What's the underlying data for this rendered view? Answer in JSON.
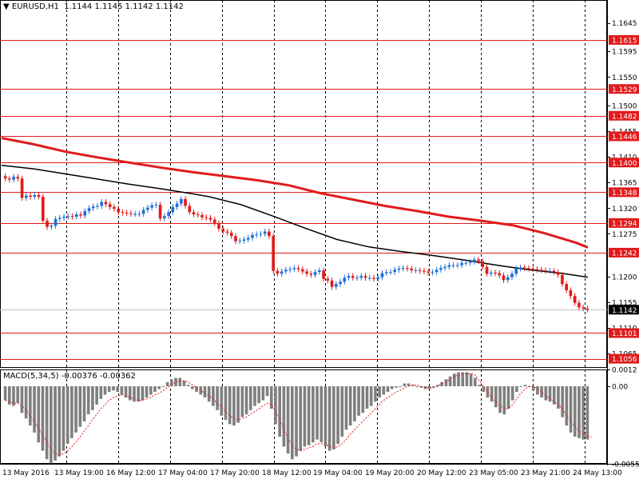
{
  "chart_data": {
    "type": "candlestick",
    "title": "EURUSD,H1",
    "ohlc_header": [
      "1.1144",
      "1.1145",
      "1.1142",
      "1.1142"
    ],
    "x_tick_labels": [
      "13 May 2016",
      "13 May 19:00",
      "16 May 12:00",
      "17 May 04:00",
      "17 May 20:00",
      "18 May 12:00",
      "19 May 04:00",
      "19 May 20:00",
      "20 May 12:00",
      "23 May 05:00",
      "23 May 21:00",
      "24 May 13:00"
    ],
    "y_tick_labels": [
      "1.1645",
      "1.1595",
      "1.1550",
      "1.1500",
      "1.1455",
      "1.1410",
      "1.1365",
      "1.1320",
      "1.1275",
      "1.1200",
      "1.1155",
      "1.1110",
      "1.1065"
    ],
    "ylim": [
      1.104,
      1.1685
    ],
    "horizontal_levels": [
      "1.1615",
      "1.1529",
      "1.1482",
      "1.1446",
      "1.1400",
      "1.1348",
      "1.1294",
      "1.1242",
      "1.1101",
      "1.1056"
    ],
    "current_price": "1.1142",
    "close_series": [
      1.1372,
      1.137,
      1.1375,
      1.1372,
      1.1338,
      1.1342,
      1.134,
      1.1343,
      1.134,
      1.1298,
      1.1287,
      1.1289,
      1.1301,
      1.1303,
      1.1305,
      1.1306,
      1.1305,
      1.1309,
      1.1307,
      1.1315,
      1.132,
      1.1323,
      1.1324,
      1.1331,
      1.1327,
      1.1322,
      1.1319,
      1.1313,
      1.1312,
      1.1311,
      1.131,
      1.131,
      1.131,
      1.1317,
      1.1321,
      1.1325,
      1.1326,
      1.1302,
      1.1306,
      1.1313,
      1.1322,
      1.1328,
      1.1336,
      1.1324,
      1.1313,
      1.1309,
      1.1308,
      1.1304,
      1.1303,
      1.13,
      1.1294,
      1.1284,
      1.1279,
      1.1277,
      1.1271,
      1.1262,
      1.1263,
      1.1265,
      1.1268,
      1.1273,
      1.1274,
      1.1275,
      1.1279,
      1.1271,
      1.121,
      1.1205,
      1.1209,
      1.1212,
      1.1213,
      1.1215,
      1.1213,
      1.1209,
      1.1205,
      1.1203,
      1.1208,
      1.1211,
      1.1196,
      1.1193,
      1.1182,
      1.1187,
      1.1191,
      1.1198,
      1.1201,
      1.1198,
      1.1198,
      1.1201,
      1.1198,
      1.1198,
      1.1196,
      1.1199,
      1.1206,
      1.1208,
      1.1208,
      1.1212,
      1.1214,
      1.1215,
      1.1214,
      1.1211,
      1.1211,
      1.121,
      1.1209,
      1.1207,
      1.1208,
      1.1212,
      1.1215,
      1.1217,
      1.122,
      1.122,
      1.122,
      1.1224,
      1.1224,
      1.1226,
      1.123,
      1.1227,
      1.1217,
      1.1205,
      1.1207,
      1.1206,
      1.1202,
      1.1194,
      1.1199,
      1.1205,
      1.1214,
      1.1216,
      1.1215,
      1.1214,
      1.1213,
      1.1212,
      1.1211,
      1.121,
      1.121,
      1.1208,
      1.1203,
      1.1187,
      1.1176,
      1.1166,
      1.1154,
      1.1146,
      1.1144,
      1.1142
    ],
    "ma_black": [
      [
        0,
        1.1395
      ],
      [
        40,
        1.1389
      ],
      [
        80,
        1.138
      ],
      [
        120,
        1.1371
      ],
      [
        160,
        1.1362
      ],
      [
        200,
        1.1354
      ],
      [
        240,
        1.1345
      ],
      [
        260,
        1.134
      ],
      [
        300,
        1.1326
      ],
      [
        340,
        1.1306
      ],
      [
        380,
        1.1285
      ],
      [
        420,
        1.1265
      ],
      [
        460,
        1.1252
      ],
      [
        500,
        1.1244
      ],
      [
        540,
        1.1237
      ],
      [
        580,
        1.1229
      ],
      [
        620,
        1.122
      ],
      [
        660,
        1.1212
      ],
      [
        700,
        1.1206
      ],
      [
        734,
        1.1199
      ]
    ],
    "ma_red": [
      [
        0,
        1.1443
      ],
      [
        40,
        1.1432
      ],
      [
        80,
        1.1419
      ],
      [
        120,
        1.1409
      ],
      [
        160,
        1.14
      ],
      [
        200,
        1.1391
      ],
      [
        240,
        1.1383
      ],
      [
        280,
        1.1376
      ],
      [
        320,
        1.1369
      ],
      [
        360,
        1.136
      ],
      [
        400,
        1.1346
      ],
      [
        440,
        1.1335
      ],
      [
        480,
        1.1324
      ],
      [
        520,
        1.1315
      ],
      [
        560,
        1.1305
      ],
      [
        600,
        1.1298
      ],
      [
        640,
        1.129
      ],
      [
        680,
        1.1276
      ],
      [
        720,
        1.1259
      ],
      [
        734,
        1.1251
      ]
    ],
    "macd": {
      "label": "MACD(5,34,5) -0.00376 -0.00362",
      "ylim": [
        -0.00553,
        0.0012
      ],
      "y_tick_labels": [
        "0.0012",
        "0.00",
        "-0.00553"
      ],
      "histogram": [
        -0.001,
        -0.0013,
        -0.0014,
        -0.0012,
        -0.0019,
        -0.0023,
        -0.0028,
        -0.0033,
        -0.004,
        -0.0046,
        -0.0052,
        -0.0055,
        -0.0053,
        -0.005,
        -0.0046,
        -0.0041,
        -0.0037,
        -0.0033,
        -0.0029,
        -0.0025,
        -0.002,
        -0.0017,
        -0.0013,
        -0.0009,
        -0.0006,
        -0.0004,
        -0.0003,
        -0.0004,
        -0.0006,
        -0.0008,
        -0.001,
        -0.0011,
        -0.0011,
        -0.001,
        -0.0008,
        -0.0006,
        -0.0004,
        -0.0002,
        0.0,
        0.0003,
        0.0005,
        0.0006,
        0.0006,
        0.0004,
        0.0001,
        -0.0002,
        -0.0004,
        -0.0006,
        -0.0008,
        -0.0011,
        -0.0014,
        -0.0017,
        -0.0021,
        -0.0024,
        -0.0027,
        -0.0028,
        -0.0026,
        -0.0022,
        -0.002,
        -0.0017,
        -0.0014,
        -0.0012,
        -0.001,
        -0.0007,
        -0.0016,
        -0.0027,
        -0.0036,
        -0.0043,
        -0.0048,
        -0.0052,
        -0.005,
        -0.0046,
        -0.0043,
        -0.0042,
        -0.004,
        -0.0038,
        -0.004,
        -0.0043,
        -0.0046,
        -0.0045,
        -0.0041,
        -0.0036,
        -0.0031,
        -0.0028,
        -0.0025,
        -0.0021,
        -0.0019,
        -0.0016,
        -0.0014,
        -0.0011,
        -0.0008,
        -0.0006,
        -0.0004,
        -0.0002,
        -0.0001,
        0.0,
        0.0002,
        0.0002,
        0.0001,
        0.0,
        -0.0001,
        -0.0002,
        -0.0002,
        -0.0001,
        0.0001,
        0.0003,
        0.0005,
        0.0007,
        0.0009,
        0.001,
        0.001,
        0.001,
        0.0009,
        0.0006,
        0.0001,
        -0.0004,
        -0.0008,
        -0.0011,
        -0.0015,
        -0.0019,
        -0.002,
        -0.0016,
        -0.001,
        -0.0004,
        0.0,
        0.0001,
        0.0,
        -0.0003,
        -0.0006,
        -0.0008,
        -0.001,
        -0.0011,
        -0.0013,
        -0.0016,
        -0.0022,
        -0.0028,
        -0.0033,
        -0.0036,
        -0.0037,
        -0.0038,
        -0.0038
      ],
      "signal": [
        -0.001,
        -0.0011,
        -0.0012,
        -0.0012,
        -0.0014,
        -0.0017,
        -0.0021,
        -0.0025,
        -0.003,
        -0.0035,
        -0.004,
        -0.0045,
        -0.0048,
        -0.0049,
        -0.0048,
        -0.0046,
        -0.0043,
        -0.004,
        -0.0036,
        -0.0032,
        -0.0028,
        -0.0024,
        -0.002,
        -0.0016,
        -0.0013,
        -0.001,
        -0.0008,
        -0.0007,
        -0.0006,
        -0.0007,
        -0.0008,
        -0.0009,
        -0.001,
        -0.001,
        -0.0009,
        -0.0008,
        -0.0006,
        -0.0005,
        -0.0003,
        -0.0001,
        0.0001,
        0.0003,
        0.0004,
        0.0004,
        0.0003,
        0.0001,
        -0.0001,
        -0.0003,
        -0.0005,
        -0.0007,
        -0.0009,
        -0.0012,
        -0.0015,
        -0.0018,
        -0.0021,
        -0.0023,
        -0.0024,
        -0.0023,
        -0.0022,
        -0.002,
        -0.0018,
        -0.0016,
        -0.0014,
        -0.0012,
        -0.0013,
        -0.0018,
        -0.0024,
        -0.0031,
        -0.0037,
        -0.0042,
        -0.0045,
        -0.0046,
        -0.0045,
        -0.0044,
        -0.0043,
        -0.0041,
        -0.0041,
        -0.0041,
        -0.0043,
        -0.0044,
        -0.0043,
        -0.0041,
        -0.0038,
        -0.0034,
        -0.0031,
        -0.0028,
        -0.0025,
        -0.0022,
        -0.0019,
        -0.0016,
        -0.0013,
        -0.001,
        -0.0008,
        -0.0006,
        -0.0004,
        -0.0003,
        -0.0001,
        0.0,
        0.0001,
        0.0001,
        0.0,
        -0.0001,
        -0.0001,
        -0.0001,
        0.0,
        0.0002,
        0.0003,
        0.0005,
        0.0007,
        0.0008,
        0.0009,
        0.0009,
        0.0009,
        0.0008,
        0.0004,
        0.0,
        -0.0004,
        -0.0008,
        -0.0011,
        -0.0014,
        -0.0016,
        -0.0016,
        -0.0013,
        -0.0009,
        -0.0005,
        -0.0002,
        0.0,
        0.0,
        -0.0002,
        -0.0004,
        -0.0007,
        -0.0009,
        -0.0011,
        -0.0013,
        -0.0016,
        -0.0021,
        -0.0025,
        -0.0029,
        -0.0032,
        -0.0034,
        -0.0036,
        -0.0036
      ]
    },
    "colors": {
      "bull": "#1e6fd9",
      "bear": "#e01b1b",
      "level_line": "#e01b1b",
      "ma_black": "#000000",
      "ma_red": "#e01b1b",
      "hist": "#7f7f7f",
      "signal": "#e01b1b",
      "price_label_bg": "#000000",
      "level_label_bg": "#e01b1b"
    }
  }
}
